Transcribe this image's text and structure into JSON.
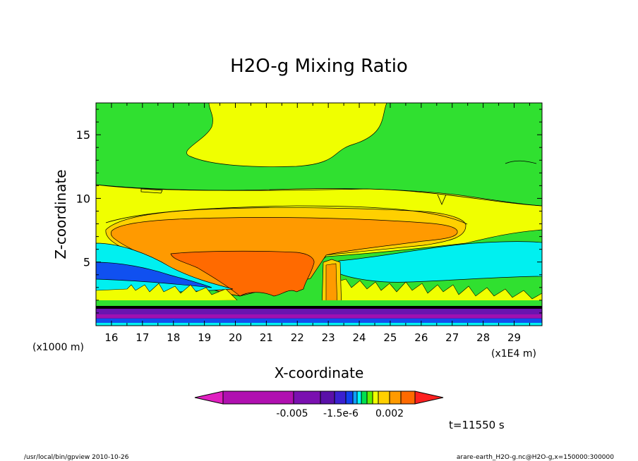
{
  "chart_data": {
    "type": "heatmap",
    "title": "H2O-g Mixing Ratio",
    "xlabel": "X-coordinate",
    "ylabel": "Z-coordinate",
    "x_unit_left": "(x1000 m)",
    "x_unit_right": "(x1E4 m)",
    "xlim": [
      15.5,
      29.9
    ],
    "ylim": [
      0,
      17.5
    ],
    "x_ticks": [
      16,
      17,
      18,
      19,
      20,
      21,
      22,
      23,
      24,
      25,
      26,
      27,
      28,
      29
    ],
    "y_ticks": [
      5,
      10,
      15
    ],
    "colorbar": {
      "tick_labels": [
        "-0.005",
        "-1.5e-6",
        "0.002"
      ],
      "colors": [
        "#e020c0",
        "#b010b0",
        "#7a10b0",
        "#5a10a8",
        "#3a20d0",
        "#1040f0",
        "#10a0ff",
        "#00ffff",
        "#00e050",
        "#60f000",
        "#f0ff00",
        "#ffd000",
        "#ff9a00",
        "#ff6a00",
        "#ff2020"
      ]
    },
    "time_label": "t=11550 s",
    "field_colors": {
      "background": "#30e030",
      "moist": "#f0ff00",
      "wetter": "#ffd000",
      "core": "#ff9a00",
      "peak": "#ff6a00",
      "cyan": "#00f0f0",
      "blue": "#1050f0",
      "purple": "#6a14b0",
      "magenta": "#a010b0"
    }
  },
  "footer": {
    "left": "/usr/local/bin/gpview  2010-10-26",
    "right": "arare-earth_H2O-g.nc@H2O-g,x=150000:300000"
  }
}
